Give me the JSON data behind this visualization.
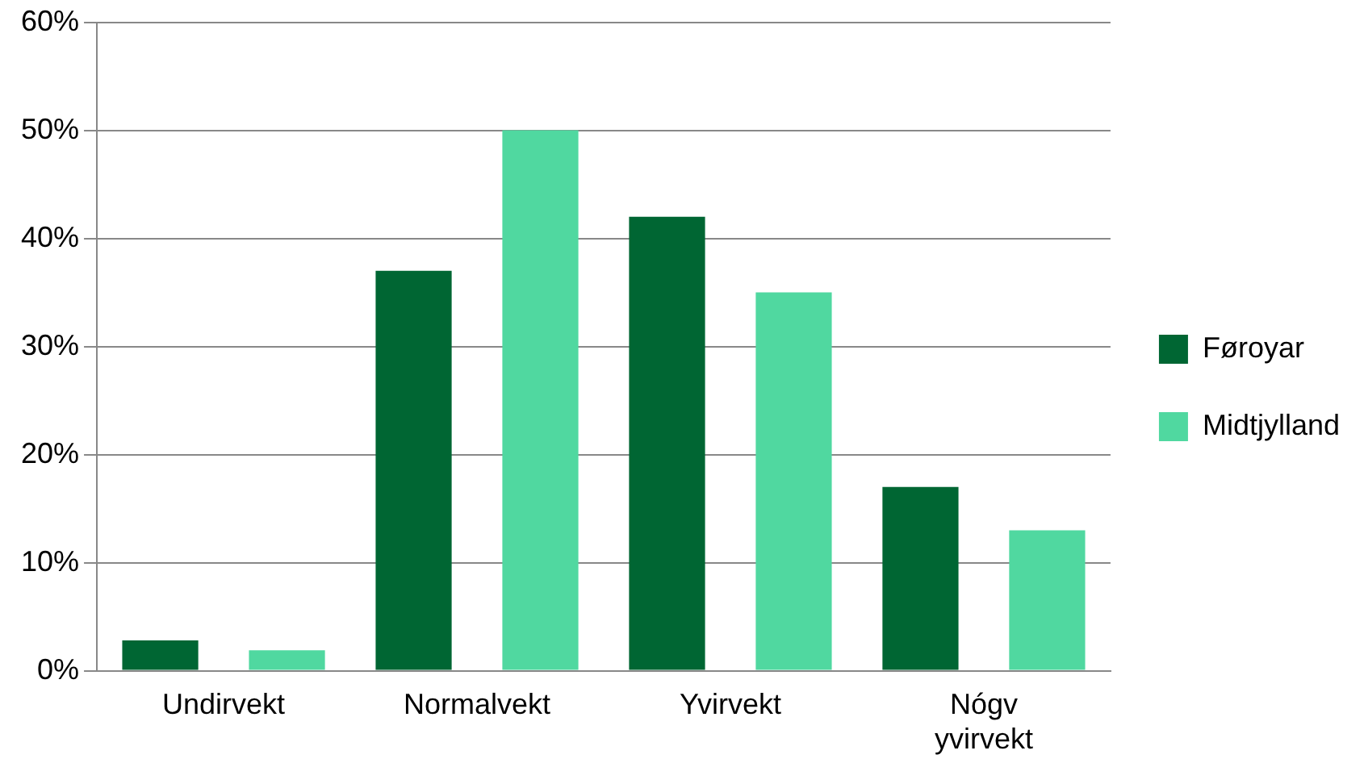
{
  "chart_data": {
    "type": "bar",
    "categories": [
      "Undirvekt",
      "Normalvekt",
      "Yvirvekt",
      "Nógv yvirvekt"
    ],
    "series": [
      {
        "name": "Føroyar",
        "color": "#006633",
        "values": [
          2.8,
          37,
          42,
          17
        ]
      },
      {
        "name": "Midtjylland",
        "color": "#50d8a0",
        "values": [
          1.9,
          50,
          35,
          13
        ]
      }
    ],
    "ylim": [
      0,
      60
    ],
    "yticks": [
      {
        "value": 0,
        "label": "0%"
      },
      {
        "value": 10,
        "label": "10%"
      },
      {
        "value": 20,
        "label": "20%"
      },
      {
        "value": 30,
        "label": "30%"
      },
      {
        "value": 40,
        "label": "40%"
      },
      {
        "value": 50,
        "label": "50%"
      },
      {
        "value": 60,
        "label": "60%"
      }
    ],
    "grid": "y",
    "legend": "right"
  }
}
